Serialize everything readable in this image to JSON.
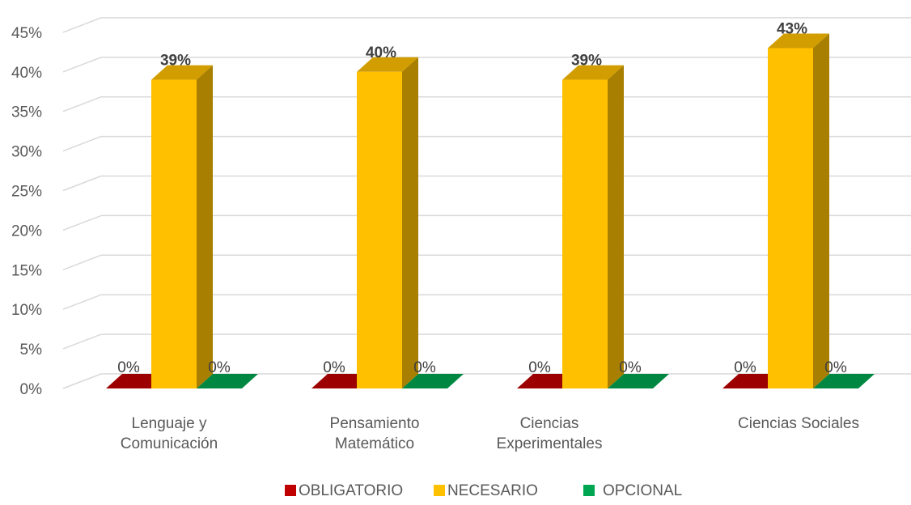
{
  "chart_data": {
    "type": "bar",
    "categories": [
      [
        "Lenguaje y",
        "Comunicación"
      ],
      [
        "Pensamiento",
        "Matemático"
      ],
      [
        "Ciencias",
        "Experimentales"
      ],
      [
        "Ciencias Sociales"
      ]
    ],
    "series": [
      {
        "name": "OBLIGATORIO",
        "color": "#c00000",
        "values": [
          0,
          0,
          0,
          0
        ],
        "labels": [
          "0%",
          "0%",
          "0%",
          "0%"
        ]
      },
      {
        "name": "NECESARIO",
        "color": "#ffc000",
        "values": [
          39,
          40,
          39,
          43
        ],
        "labels": [
          "39%",
          "40%",
          "39%",
          "43%"
        ]
      },
      {
        "name": "OPCIONAL",
        "color": "#00a651",
        "values": [
          0,
          0,
          0,
          0
        ],
        "labels": [
          "0%",
          "0%",
          "0%",
          "0%"
        ]
      }
    ],
    "ylim": [
      0,
      45
    ],
    "yticks": [
      "0%",
      "5%",
      "10%",
      "15%",
      "20%",
      "25%",
      "30%",
      "35%",
      "40%",
      "45%"
    ],
    "grid": true,
    "legend_position": "bottom",
    "three_d": true
  }
}
